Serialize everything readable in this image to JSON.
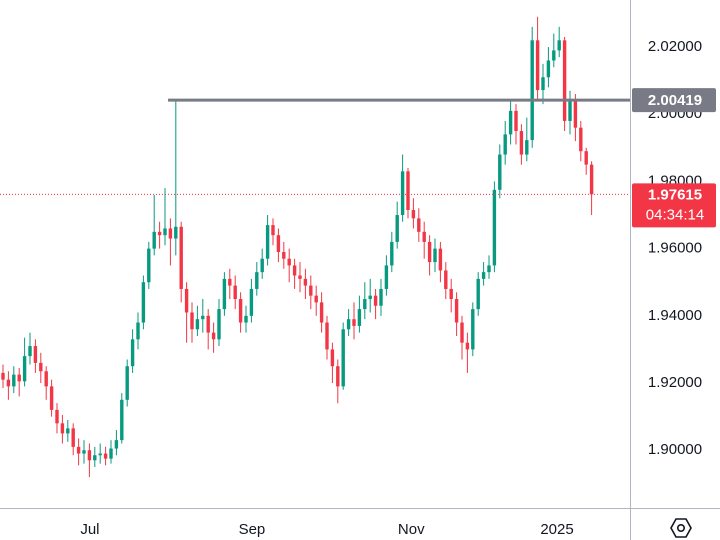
{
  "chart_data": {
    "type": "candlestick",
    "up_color": "#089981",
    "down_color": "#f23645",
    "ylim": [
      1.8828,
      2.034
    ],
    "yticks": [
      {
        "value": 1.9,
        "label": "1.90000"
      },
      {
        "value": 1.92,
        "label": "1.92000"
      },
      {
        "value": 1.94,
        "label": "1.94000"
      },
      {
        "value": 1.96,
        "label": "1.96000"
      },
      {
        "value": 1.98,
        "label": "1.98000"
      },
      {
        "value": 2.0,
        "label": "2.00000"
      },
      {
        "value": 2.02,
        "label": "2.02000"
      }
    ],
    "xticks": [
      {
        "value": 16.1,
        "label": "Jul"
      },
      {
        "value": 46.1,
        "label": "Sep"
      },
      {
        "value": 75.6,
        "label": "Nov"
      },
      {
        "value": 102.6,
        "label": "2025"
      }
    ],
    "grid": false,
    "level": {
      "value": 2.00419,
      "label": "2.00419",
      "color": "#787b86"
    },
    "last_price": {
      "value": 1.97615,
      "label": "1.97615",
      "countdown": "04:34:14",
      "color": "#f23645"
    },
    "open": [
      1.923,
      1.921,
      1.919,
      1.9225,
      1.9205,
      1.928,
      1.931,
      1.926,
      1.9235,
      1.919,
      1.912,
      1.908,
      1.905,
      1.9065,
      1.901,
      1.899,
      1.9,
      1.897,
      1.8985,
      1.899,
      1.8975,
      1.9005,
      1.903,
      1.915,
      1.925,
      1.933,
      1.938,
      1.95,
      1.96,
      1.965,
      1.964,
      1.966,
      1.963,
      1.9665,
      1.948,
      1.941,
      1.936,
      1.939,
      1.94,
      1.935,
      1.933,
      1.942,
      1.951,
      1.949,
      1.945,
      1.938,
      1.94,
      1.948,
      1.953,
      1.957,
      1.967,
      1.964,
      1.959,
      1.957,
      1.955,
      1.952,
      1.951,
      1.949,
      1.946,
      1.944,
      1.938,
      1.93,
      1.925,
      1.919,
      1.936,
      1.939,
      1.937,
      1.942,
      1.945,
      1.946,
      1.943,
      1.948,
      1.955,
      1.962,
      1.97,
      1.983,
      1.9715,
      1.969,
      1.965,
      1.962,
      1.956,
      1.96,
      1.9535,
      1.948,
      1.945,
      1.938,
      1.932,
      1.93,
      1.942,
      1.951,
      1.953,
      1.955,
      1.9775,
      1.988,
      1.994,
      2.001,
      1.995,
      1.988,
      1.9923,
      2.022,
      2.0072,
      2.011,
      2.016,
      2.019,
      2.022,
      1.998,
      2.004,
      1.996,
      1.989,
      1.985
    ],
    "high": [
      1.9255,
      1.9235,
      1.925,
      1.9245,
      1.9335,
      1.935,
      1.933,
      1.929,
      1.925,
      1.921,
      1.914,
      1.9105,
      1.909,
      1.908,
      1.9035,
      1.903,
      1.902,
      1.901,
      1.902,
      1.901,
      1.903,
      1.906,
      1.917,
      1.927,
      1.936,
      1.941,
      1.952,
      1.962,
      1.976,
      1.968,
      1.978,
      1.969,
      2.0042,
      1.968,
      1.95,
      1.944,
      1.943,
      1.945,
      1.942,
      1.938,
      1.945,
      1.953,
      1.954,
      1.952,
      1.947,
      1.943,
      1.951,
      1.956,
      1.96,
      1.97,
      1.969,
      1.966,
      1.962,
      1.96,
      1.957,
      1.956,
      1.954,
      1.952,
      1.949,
      1.947,
      1.94,
      1.932,
      1.927,
      1.938,
      1.942,
      1.944,
      1.946,
      1.95,
      1.951,
      1.948,
      1.951,
      1.958,
      1.965,
      1.974,
      1.988,
      1.984,
      1.975,
      1.972,
      1.968,
      1.964,
      1.963,
      1.962,
      1.956,
      1.951,
      1.947,
      1.94,
      1.935,
      1.944,
      1.953,
      1.956,
      1.958,
      1.98,
      1.991,
      1.998,
      2.004,
      2.003,
      1.997,
      1.999,
      2.026,
      2.029,
      2.015,
      2.02,
      2.024,
      2.026,
      2.023,
      2.007,
      2.006,
      1.998,
      1.99,
      1.986
    ],
    "low": [
      1.9185,
      1.915,
      1.917,
      1.916,
      1.919,
      1.9255,
      1.923,
      1.92,
      1.915,
      1.91,
      1.905,
      1.902,
      1.9025,
      1.8985,
      1.8955,
      1.896,
      1.892,
      1.895,
      1.896,
      1.8955,
      1.896,
      1.8985,
      1.902,
      1.913,
      1.923,
      1.93,
      1.936,
      1.948,
      1.958,
      1.96,
      1.961,
      1.955,
      1.958,
      1.944,
      1.932,
      1.932,
      1.934,
      1.935,
      1.93,
      1.929,
      1.931,
      1.94,
      1.945,
      1.942,
      1.935,
      1.935,
      1.938,
      1.946,
      1.951,
      1.955,
      1.961,
      1.956,
      1.954,
      1.95,
      1.948,
      1.947,
      1.945,
      1.942,
      1.94,
      1.935,
      1.927,
      1.92,
      1.914,
      1.918,
      1.934,
      1.933,
      1.935,
      1.939,
      1.941,
      1.939,
      1.94,
      1.946,
      1.953,
      1.96,
      1.968,
      1.969,
      1.966,
      1.962,
      1.957,
      1.952,
      1.953,
      1.95,
      1.945,
      1.941,
      1.934,
      1.927,
      1.923,
      1.928,
      1.94,
      1.949,
      1.951,
      1.953,
      1.975,
      1.985,
      1.991,
      1.991,
      1.985,
      1.986,
      1.99,
      2.004,
      2.003,
      2.008,
      2.014,
      2.017,
      1.995,
      1.994,
      1.992,
      1.986,
      1.982,
      1.97
    ],
    "close": [
      1.921,
      1.919,
      1.9225,
      1.9205,
      1.928,
      1.931,
      1.926,
      1.9235,
      1.919,
      1.912,
      1.908,
      1.905,
      1.9065,
      1.901,
      1.899,
      1.9,
      1.897,
      1.8985,
      1.899,
      1.8975,
      1.9005,
      1.903,
      1.915,
      1.925,
      1.933,
      1.938,
      1.95,
      1.96,
      1.965,
      1.964,
      1.966,
      1.963,
      1.9665,
      1.948,
      1.941,
      1.936,
      1.939,
      1.94,
      1.935,
      1.933,
      1.942,
      1.951,
      1.949,
      1.945,
      1.938,
      1.94,
      1.948,
      1.953,
      1.957,
      1.967,
      1.964,
      1.959,
      1.957,
      1.955,
      1.952,
      1.951,
      1.949,
      1.946,
      1.944,
      1.938,
      1.93,
      1.925,
      1.919,
      1.936,
      1.939,
      1.937,
      1.942,
      1.945,
      1.946,
      1.943,
      1.948,
      1.955,
      1.962,
      1.97,
      1.983,
      1.9715,
      1.969,
      1.965,
      1.962,
      1.956,
      1.96,
      1.9535,
      1.948,
      1.945,
      1.938,
      1.932,
      1.93,
      1.942,
      1.951,
      1.953,
      1.955,
      1.9775,
      1.988,
      1.994,
      2.001,
      1.995,
      1.988,
      1.9923,
      2.022,
      2.0072,
      2.011,
      2.016,
      2.019,
      2.022,
      1.998,
      2.004,
      1.996,
      1.989,
      1.985,
      1.97615
    ]
  }
}
